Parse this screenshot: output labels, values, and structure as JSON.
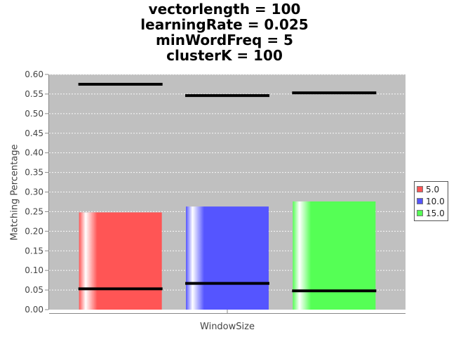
{
  "chart_data": {
    "type": "bar",
    "title_lines": [
      "vectorlength = 100",
      "learningRate = 0.025",
      "minWordFreq = 5",
      "clusterK = 100"
    ],
    "xlabel": "WindowSize",
    "ylabel": "Matching Percentage",
    "ylim": [
      0,
      0.6
    ],
    "y_ticks": [
      "0.00",
      "0.05",
      "0.10",
      "0.15",
      "0.20",
      "0.25",
      "0.30",
      "0.35",
      "0.40",
      "0.45",
      "0.50",
      "0.55",
      "0.60"
    ],
    "categories": [
      ""
    ],
    "series": [
      {
        "name": "5.0",
        "values": [
          0.248
        ],
        "min": 0.053,
        "max": 0.575,
        "color": "#ff5555"
      },
      {
        "name": "10.0",
        "values": [
          0.263
        ],
        "min": 0.067,
        "max": 0.546,
        "color": "#5555ff"
      },
      {
        "name": "15.0",
        "values": [
          0.276
        ],
        "min": 0.048,
        "max": 0.553,
        "color": "#55ff55"
      }
    ],
    "grid": true,
    "legend": "right",
    "plot_background": "#c0c0c0"
  }
}
